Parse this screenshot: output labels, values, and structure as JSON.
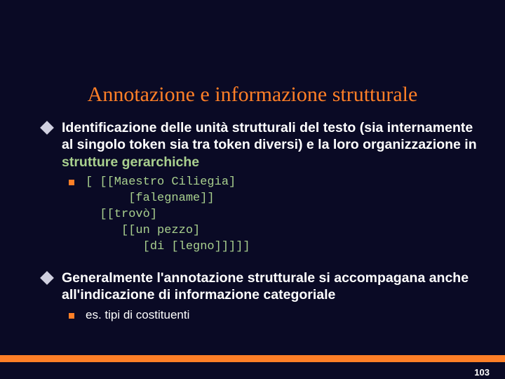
{
  "title": "Annotazione e informazione strutturale",
  "bullets": [
    {
      "pre": "Identificazione delle unità strutturali del testo (sia internamente al singolo token sia  tra token diversi) e la loro organizzazione in ",
      "highlight": "strutture gerarchiche"
    },
    {
      "pre": "Generalmente l'annotazione strutturale si accompagana anche all'indicazione di informazione categoriale",
      "highlight": ""
    }
  ],
  "code": {
    "l1": "[ [[Maestro Ciliegia]",
    "l2": "      [falegname]]",
    "l3": "  [[trovò]",
    "l4": "     [[un pezzo]",
    "l5": "        [di [legno]]]]]"
  },
  "subnote": "es. tipi di costituenti",
  "pageNumber": "103",
  "colors": {
    "background": "#0a0a25",
    "titleColor": "#ff7f27",
    "textColor": "#ffffff",
    "highlightColor": "#a9d08e",
    "accentColor": "#ff7f27",
    "diamondColor": "#d0d0e0"
  }
}
